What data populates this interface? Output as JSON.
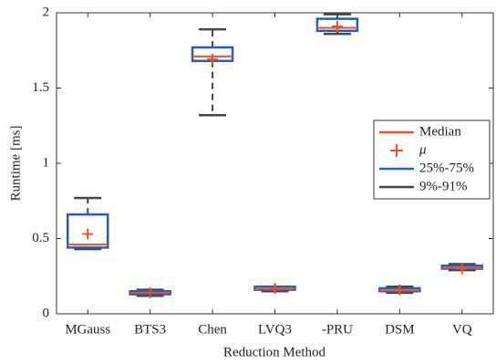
{
  "chart_data": {
    "type": "box",
    "xlabel": "Reduction Method",
    "ylabel": "Runtime [ms]",
    "categories": [
      "MGauss",
      "BTS3",
      "Chen",
      "LVQ3",
      "-PRU",
      "DSM",
      "VQ"
    ],
    "whisker_low": [
      0.43,
      0.12,
      1.32,
      0.15,
      1.86,
      0.14,
      0.29
    ],
    "q1": [
      0.44,
      0.13,
      1.68,
      0.16,
      1.88,
      0.15,
      0.3
    ],
    "median": [
      0.46,
      0.14,
      1.71,
      0.165,
      1.9,
      0.155,
      0.305
    ],
    "q3": [
      0.66,
      0.15,
      1.77,
      0.18,
      1.96,
      0.17,
      0.32
    ],
    "whisker_high": [
      0.77,
      0.16,
      1.89,
      0.18,
      1.99,
      0.18,
      0.33
    ],
    "mean": [
      0.53,
      0.14,
      1.69,
      0.17,
      1.91,
      0.16,
      0.3
    ],
    "ylim": [
      0,
      2
    ],
    "yticks": [
      0,
      0.5,
      1,
      1.5,
      2
    ],
    "legend_position": "right",
    "legend": [
      {
        "label": "Median",
        "color": "#f0501e",
        "marker": "line"
      },
      {
        "label": "μ",
        "color": "#f0501e",
        "marker": "plus"
      },
      {
        "label": "25%-75%",
        "color": "#1f5fbf",
        "marker": "line"
      },
      {
        "label": "9%-91%",
        "color": "#444444",
        "marker": "line"
      }
    ]
  }
}
